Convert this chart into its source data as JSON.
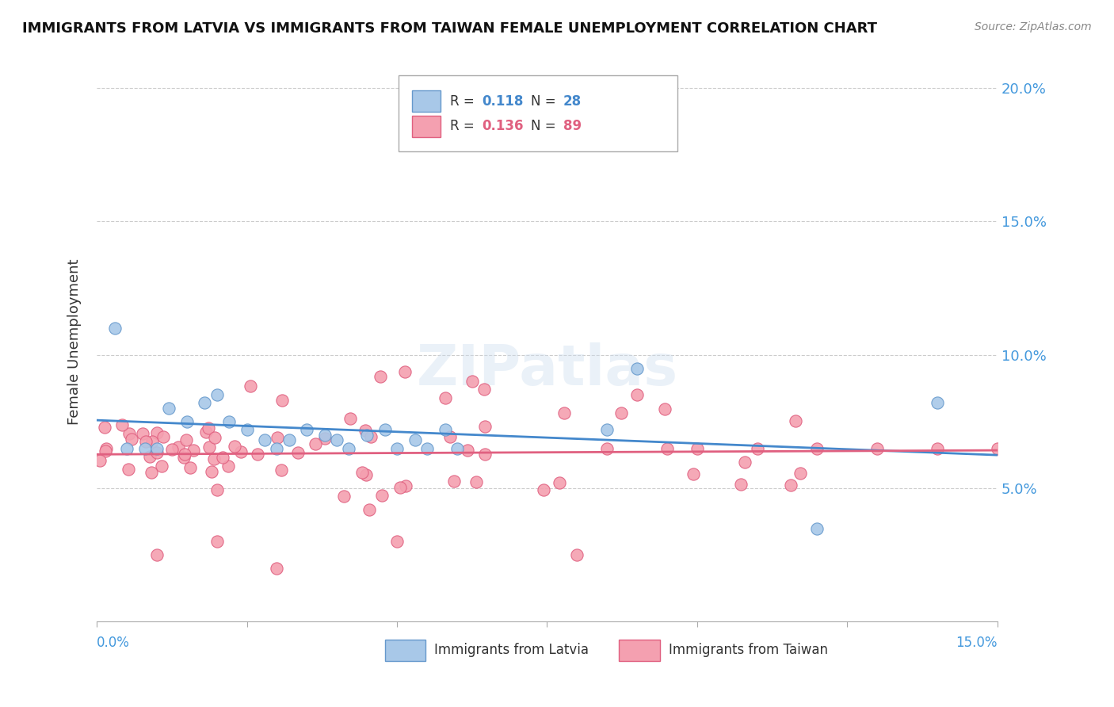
{
  "title": "IMMIGRANTS FROM LATVIA VS IMMIGRANTS FROM TAIWAN FEMALE UNEMPLOYMENT CORRELATION CHART",
  "source": "Source: ZipAtlas.com",
  "ylabel": "Female Unemployment",
  "xlim": [
    0.0,
    0.15
  ],
  "ylim": [
    0.0,
    0.21
  ],
  "ytick_vals": [
    0.05,
    0.1,
    0.15,
    0.2
  ],
  "ytick_labels": [
    "5.0%",
    "10.0%",
    "15.0%",
    "20.0%"
  ],
  "xtick_vals": [
    0.0,
    0.025,
    0.05,
    0.075,
    0.1,
    0.125,
    0.15
  ],
  "latvia_color": "#a8c8e8",
  "taiwan_color": "#f4a0b0",
  "latvia_edge": "#6699cc",
  "taiwan_edge": "#e06080",
  "line_latvia_color": "#4488cc",
  "line_taiwan_color": "#e06080",
  "watermark_text": "ZIPatlas",
  "background_color": "#ffffff",
  "grid_color": "#cccccc",
  "latvia_x": [
    0.005,
    0.003,
    0.008,
    0.01,
    0.012,
    0.015,
    0.018,
    0.02,
    0.022,
    0.025,
    0.028,
    0.03,
    0.032,
    0.035,
    0.038,
    0.04,
    0.042,
    0.045,
    0.048,
    0.05,
    0.053,
    0.055,
    0.058,
    0.06,
    0.085,
    0.09,
    0.12,
    0.14
  ],
  "latvia_y": [
    0.065,
    0.11,
    0.065,
    0.065,
    0.08,
    0.075,
    0.082,
    0.085,
    0.075,
    0.072,
    0.068,
    0.065,
    0.068,
    0.072,
    0.07,
    0.068,
    0.065,
    0.07,
    0.072,
    0.065,
    0.068,
    0.065,
    0.072,
    0.065,
    0.072,
    0.095,
    0.035,
    0.082
  ]
}
